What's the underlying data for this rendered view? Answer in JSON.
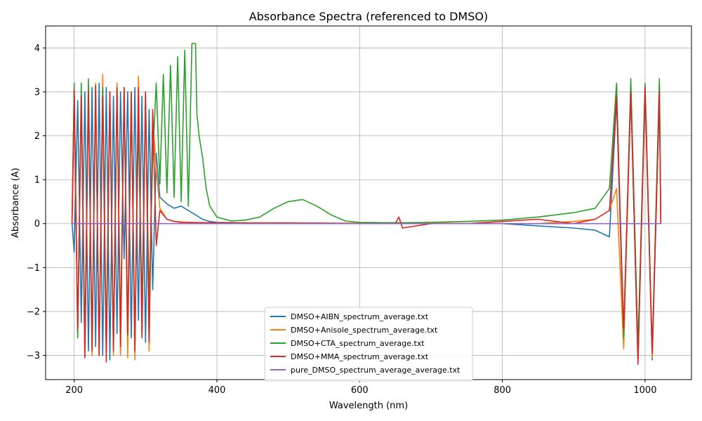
{
  "chart_data": {
    "type": "line",
    "title": "Absorbance Spectra (referenced to DMSO)",
    "xlabel": "Wavelength (nm)",
    "ylabel": "Absorbance (A)",
    "xlim": [
      160,
      1065
    ],
    "ylim": [
      -3.55,
      4.5
    ],
    "xticks": [
      200,
      400,
      600,
      800,
      1000
    ],
    "yticks": [
      -3,
      -2,
      -1,
      0,
      1,
      2,
      3,
      4
    ],
    "grid": true,
    "legend_position": "bottom-center",
    "series": [
      {
        "name": "DMSO+AIBN_spectrum_average.txt",
        "color": "#1f77b4",
        "x": [
          197,
          200,
          205,
          210,
          215,
          220,
          225,
          230,
          235,
          240,
          245,
          250,
          255,
          260,
          265,
          270,
          275,
          280,
          285,
          290,
          295,
          300,
          305,
          310,
          315,
          320,
          330,
          340,
          350,
          360,
          370,
          380,
          390,
          400,
          450,
          500,
          550,
          600,
          650,
          700,
          750,
          800,
          850,
          900,
          930,
          950,
          960,
          970,
          980,
          990,
          1000,
          1010,
          1020,
          1022
        ],
        "y": [
          0.0,
          -0.65,
          2.8,
          -2.25,
          3.0,
          -2.9,
          3.1,
          -2.8,
          3.2,
          -3.0,
          3.1,
          -3.1,
          2.9,
          -2.5,
          3.0,
          -0.8,
          3.0,
          -2.6,
          3.1,
          -2.2,
          2.9,
          -2.7,
          2.6,
          -1.5,
          1.6,
          0.6,
          0.45,
          0.35,
          0.4,
          0.3,
          0.2,
          0.1,
          0.05,
          0.03,
          0.02,
          0.02,
          0.0,
          0.0,
          0.02,
          0.0,
          0.0,
          0.0,
          -0.05,
          -0.1,
          -0.15,
          -0.3,
          2.8,
          -2.7,
          3.0,
          -3.1,
          3.0,
          -3.1,
          2.9,
          0.0
        ]
      },
      {
        "name": "DMSO+Anisole_spectrum_average.txt",
        "color": "#ff7f0e",
        "x": [
          197,
          200,
          205,
          210,
          215,
          220,
          225,
          230,
          235,
          240,
          245,
          250,
          255,
          260,
          265,
          270,
          275,
          280,
          285,
          290,
          295,
          300,
          305,
          310,
          315,
          320,
          330,
          340,
          350,
          360,
          380,
          400,
          450,
          500,
          550,
          600,
          650,
          700,
          750,
          800,
          850,
          900,
          930,
          950,
          960,
          970,
          980,
          990,
          1000,
          1010,
          1020,
          1022
        ],
        "y": [
          0.0,
          3.0,
          -2.5,
          2.9,
          -3.05,
          3.1,
          -3.0,
          3.2,
          -3.0,
          3.4,
          -2.85,
          3.0,
          -3.0,
          3.2,
          -3.0,
          3.1,
          -3.05,
          3.0,
          -3.1,
          3.35,
          -2.5,
          3.0,
          -2.9,
          2.5,
          1.2,
          0.35,
          0.1,
          0.05,
          0.04,
          0.03,
          0.02,
          0.02,
          0.02,
          0.02,
          0.01,
          0.01,
          0.02,
          0.02,
          0.0,
          0.0,
          0.0,
          0.05,
          0.1,
          0.3,
          0.8,
          -2.85,
          3.05,
          -3.0,
          3.1,
          -3.05,
          3.2,
          0.0
        ]
      },
      {
        "name": "DMSO+CTA_spectrum_average.txt",
        "color": "#2ca02c",
        "x": [
          197,
          200,
          205,
          210,
          215,
          220,
          225,
          230,
          235,
          240,
          245,
          250,
          255,
          260,
          265,
          270,
          275,
          280,
          285,
          290,
          295,
          300,
          305,
          310,
          315,
          320,
          325,
          330,
          335,
          340,
          345,
          350,
          355,
          360,
          365,
          370,
          372,
          375,
          380,
          385,
          390,
          400,
          420,
          440,
          460,
          480,
          500,
          520,
          540,
          560,
          580,
          600,
          650,
          700,
          750,
          800,
          850,
          900,
          930,
          950,
          960,
          970,
          980,
          990,
          1000,
          1010,
          1020,
          1022
        ],
        "y": [
          0.0,
          3.2,
          -2.6,
          3.2,
          -2.7,
          3.3,
          -2.8,
          3.0,
          -2.9,
          3.1,
          -2.7,
          3.0,
          -2.8,
          3.1,
          -2.5,
          3.0,
          -2.55,
          2.9,
          -2.6,
          2.3,
          -1.9,
          2.6,
          -1.7,
          1.5,
          3.2,
          0.9,
          3.4,
          0.7,
          3.6,
          0.6,
          3.8,
          0.5,
          3.95,
          0.4,
          4.1,
          4.1,
          2.5,
          2.0,
          1.5,
          0.8,
          0.4,
          0.15,
          0.06,
          0.08,
          0.15,
          0.35,
          0.5,
          0.55,
          0.4,
          0.2,
          0.06,
          0.03,
          0.02,
          0.03,
          0.05,
          0.08,
          0.15,
          0.25,
          0.35,
          0.8,
          3.2,
          -2.6,
          3.3,
          -2.8,
          3.2,
          -2.9,
          3.3,
          0.0
        ]
      },
      {
        "name": "DMSO+MMA_spectrum_average.txt",
        "color": "#d62728",
        "x": [
          197,
          200,
          205,
          210,
          215,
          220,
          225,
          230,
          235,
          240,
          245,
          250,
          255,
          260,
          265,
          270,
          275,
          280,
          285,
          290,
          295,
          300,
          305,
          310,
          315,
          320,
          330,
          340,
          350,
          400,
          450,
          500,
          550,
          600,
          650,
          655,
          660,
          700,
          750,
          800,
          850,
          900,
          930,
          950,
          960,
          970,
          980,
          990,
          1000,
          1010,
          1020,
          1022
        ],
        "y": [
          0.0,
          3.05,
          -2.4,
          2.9,
          -3.05,
          3.0,
          -2.9,
          3.15,
          -3.0,
          2.9,
          -3.15,
          3.0,
          -2.9,
          3.1,
          -2.8,
          3.1,
          -2.5,
          3.0,
          -2.9,
          3.1,
          -2.6,
          3.0,
          -2.7,
          2.6,
          -0.5,
          0.3,
          0.1,
          0.05,
          0.03,
          0.02,
          0.01,
          0.01,
          0.01,
          0.0,
          0.0,
          0.15,
          -0.1,
          0.0,
          0.0,
          0.05,
          0.1,
          0.0,
          0.1,
          0.3,
          2.9,
          -2.4,
          3.0,
          -3.2,
          3.1,
          -2.95,
          3.0,
          0.0
        ]
      },
      {
        "name": "pure_DMSO_spectrum_average_average.txt",
        "color": "#9467bd",
        "x": [
          197,
          1022
        ],
        "y": [
          0.0,
          0.0
        ]
      }
    ]
  }
}
